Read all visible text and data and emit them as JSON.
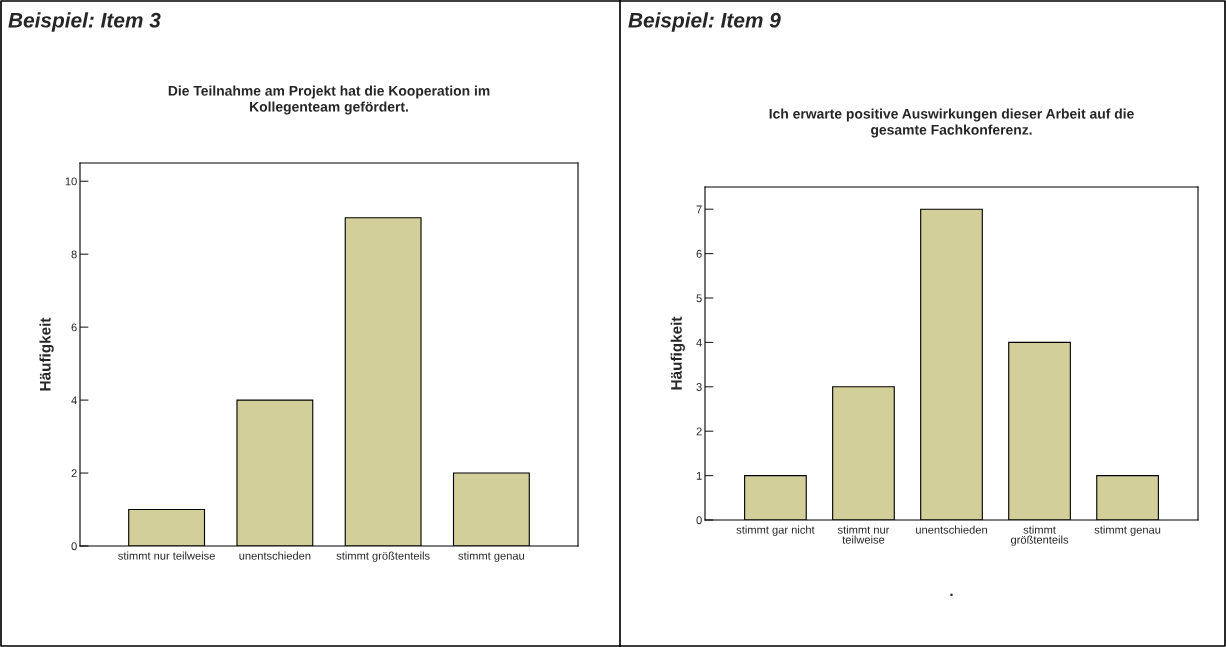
{
  "chart_data": [
    {
      "type": "bar",
      "title": "Beispiel: Item 3",
      "subtitle": "Die Teilnahme am Projekt hat die Kooperation im\nKollegenteam gefördert.",
      "ylabel": "Häufigkeit",
      "categories": [
        "stimmt nur teilweise",
        "unentschieden",
        "stimmt größtenteils",
        "stimmt genau"
      ],
      "values": [
        1,
        4,
        9,
        2
      ],
      "color": "#d3cf9b",
      "ylim": [
        0,
        10.5
      ],
      "yticks": [
        0,
        2,
        4,
        6,
        8,
        10
      ],
      "grid": false,
      "legend": false
    },
    {
      "type": "bar",
      "title": "Beispiel: Item 9",
      "subtitle": "Ich erwarte positive Auswirkungen dieser Arbeit auf die\ngesamte Fachkonferenz.",
      "ylabel": "Häufigkeit",
      "categories": [
        "stimmt gar nicht",
        "stimmt nur\nteilweise",
        "unentschieden",
        "stimmt\ngrößtenteils",
        "stimmt genau"
      ],
      "values": [
        1,
        3,
        7,
        4,
        1
      ],
      "color": "#d3cf9b",
      "ylim": [
        0,
        7.5
      ],
      "yticks": [
        0,
        1,
        2,
        3,
        4,
        5,
        6,
        7
      ],
      "grid": false,
      "legend": false,
      "annotations": [
        "."
      ]
    }
  ]
}
